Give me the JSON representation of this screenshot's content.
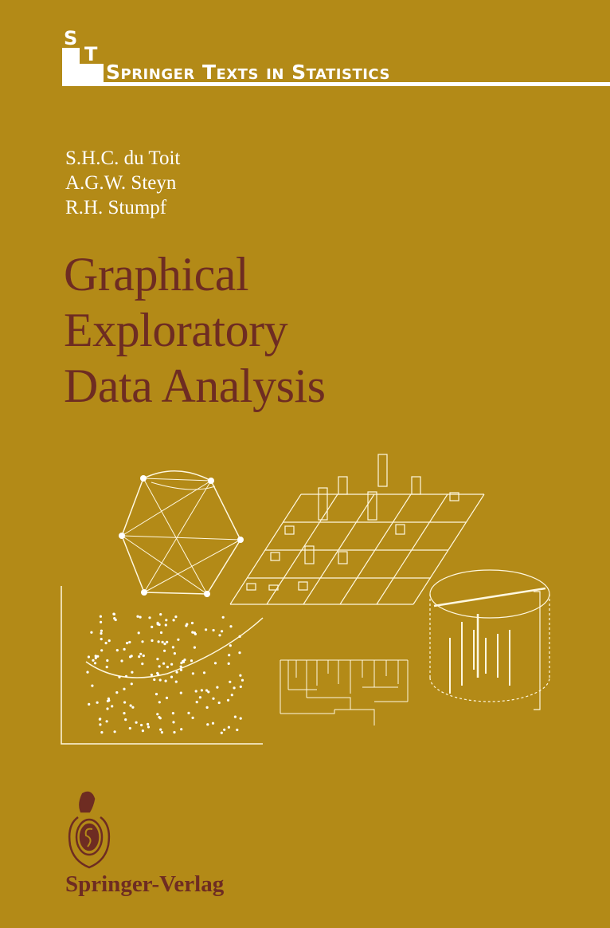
{
  "series": {
    "logo_letters": [
      "S",
      "T"
    ],
    "name": "Springer Texts in Statistics"
  },
  "authors": [
    "S.H.C. du Toit",
    "A.G.W. Steyn",
    "R.H. Stumpf"
  ],
  "title_lines": [
    "Graphical",
    "Exploratory",
    "Data Analysis"
  ],
  "publisher": "Springer-Verlag",
  "colors": {
    "background": "#b38a17",
    "title": "#6e2c22",
    "lines": "#ffffff"
  },
  "illustrations": [
    "network-graph",
    "3d-bar-grid",
    "scatter-plot-with-curve",
    "dendrogram",
    "cylinder-3d-plot"
  ]
}
